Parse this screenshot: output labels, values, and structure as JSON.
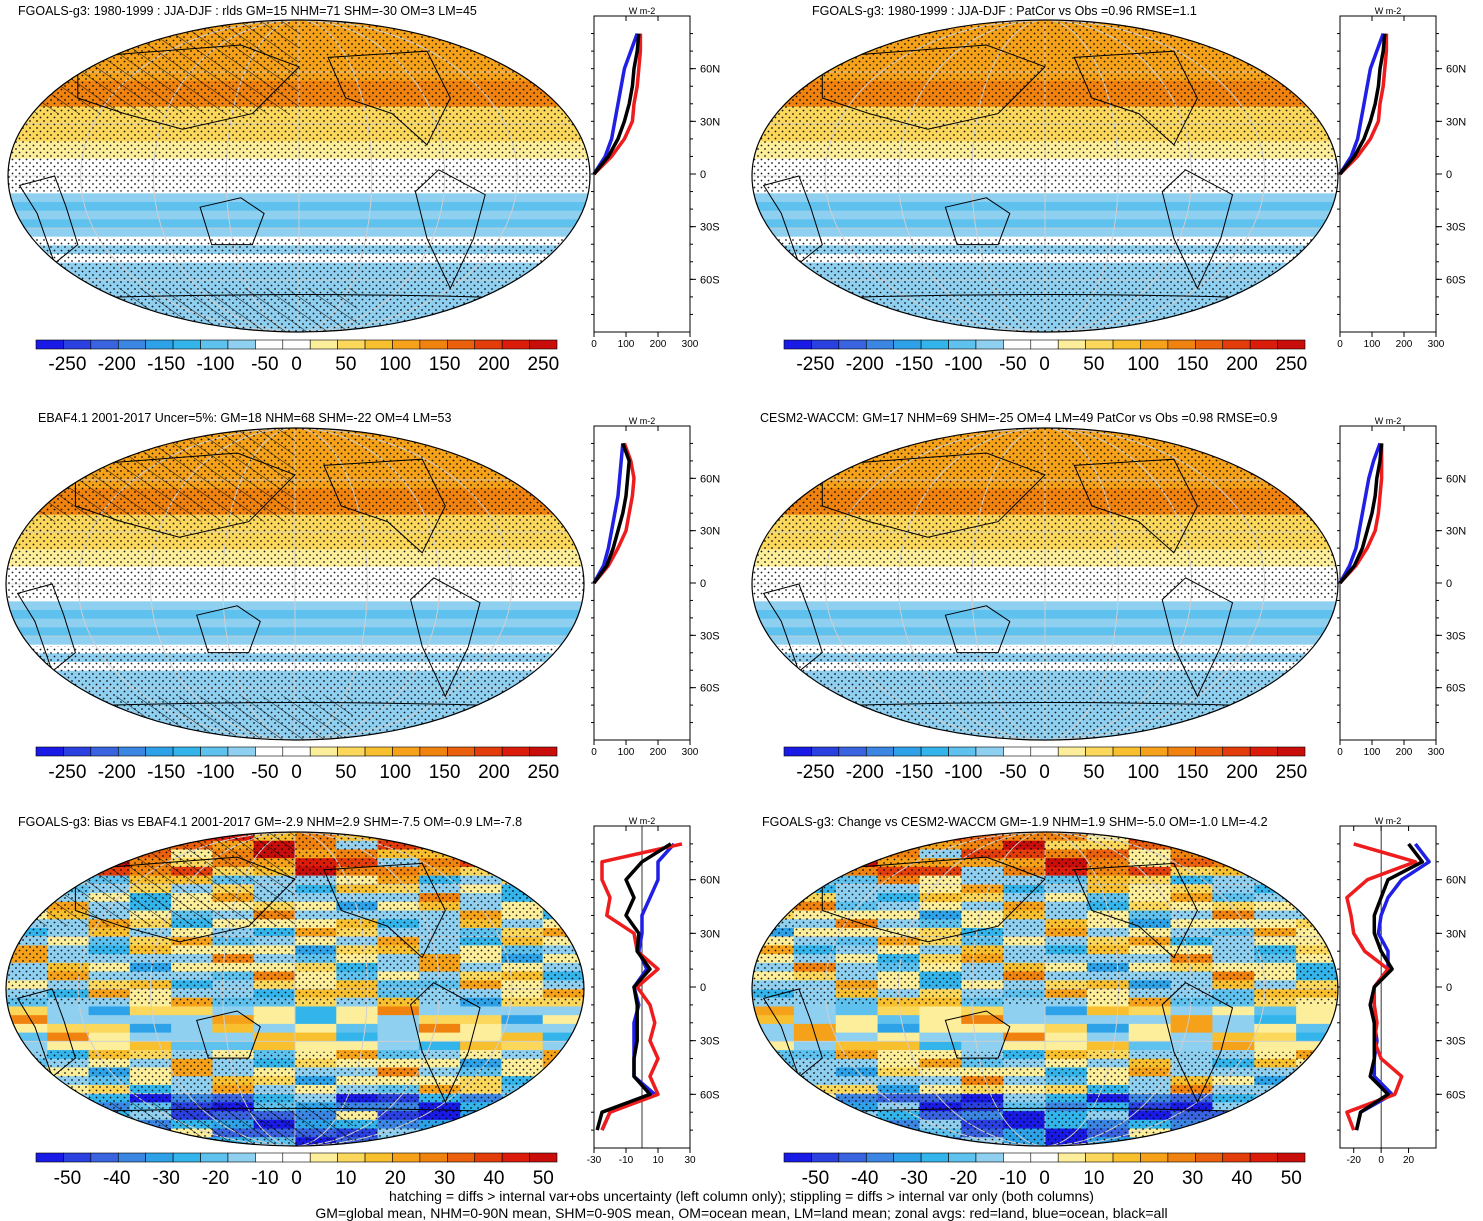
{
  "footer": {
    "line1": "hatching = diffs > internal var+obs uncertainty (left column only); stippling = diffs > internal var only (both columns)",
    "line2": "GM=global mean, NHM=0-90N mean, SHM=0-90S mean, OM=ocean mean, LM=land mean; zonal avgs: red=land, blue=ocean, black=all"
  },
  "palette": [
    "#1a1ae6",
    "#2a40e0",
    "#3a63e0",
    "#3c86e3",
    "#2ea2e8",
    "#33b5ec",
    "#5ec1ee",
    "#8fd0f1",
    "#ffffff",
    "#ffffff",
    "#fcee9a",
    "#fbd85c",
    "#f8bf2e",
    "#f5a21a",
    "#f0830f",
    "#eb600c",
    "#e43d0c",
    "#dc1c0b",
    "#c80d0b"
  ],
  "chart_data": [
    {
      "type": "heatmap",
      "title": "FGOALS-g3: 1980-1999 : JJA-DJF : rlds GM=15 NHM=71 SHM=-30 OM=3 LM=45",
      "field": "seasonal",
      "hatching": true,
      "colorbar_labels": [
        "-250",
        "-200",
        "-150",
        "-100",
        "-50",
        "0",
        "50",
        "100",
        "150",
        "200",
        "250"
      ],
      "zonal_avg": {
        "unit": "W m-2",
        "xticks": [
          "0",
          "100",
          "200",
          "300"
        ],
        "xlim": [
          0,
          300
        ],
        "yticks": [
          "60N",
          "30N",
          "0",
          "30S",
          "60S"
        ],
        "lat": [
          0,
          10,
          20,
          30,
          40,
          50,
          60,
          70,
          80
        ],
        "all": [
          0,
          45,
          75,
          95,
          110,
          120,
          125,
          135,
          140
        ],
        "land": [
          0,
          55,
          95,
          120,
          125,
          135,
          140,
          145,
          145
        ],
        "ocean": [
          0,
          35,
          55,
          65,
          75,
          85,
          95,
          115,
          135
        ]
      }
    },
    {
      "type": "heatmap",
      "title": "FGOALS-g3: 1980-1999 : JJA-DJF : PatCor vs Obs =0.96 RMSE=1.1",
      "field": "seasonal",
      "hatching": false,
      "colorbar_labels": [
        "-250",
        "-200",
        "-150",
        "-100",
        "-50",
        "0",
        "50",
        "100",
        "150",
        "200",
        "250"
      ],
      "zonal_avg": {
        "unit": "W m-2",
        "xticks": [
          "0",
          "100",
          "200",
          "300"
        ],
        "xlim": [
          0,
          300
        ],
        "yticks": [
          "60N",
          "30N",
          "0",
          "30S",
          "60S"
        ],
        "lat": [
          0,
          10,
          20,
          30,
          40,
          50,
          60,
          70,
          80
        ],
        "all": [
          0,
          45,
          75,
          95,
          110,
          120,
          125,
          135,
          140
        ],
        "land": [
          0,
          55,
          95,
          120,
          125,
          135,
          140,
          145,
          145
        ],
        "ocean": [
          0,
          35,
          55,
          65,
          75,
          85,
          95,
          115,
          135
        ]
      }
    },
    {
      "type": "heatmap",
      "title": "EBAF4.1 2001-2017 Uncer=5%: GM=18 NHM=68 SHM=-22 OM=4 LM=53",
      "field": "seasonal",
      "hatching": true,
      "colorbar_labels": [
        "-250",
        "-200",
        "-150",
        "-100",
        "-50",
        "0",
        "50",
        "100",
        "150",
        "200",
        "250"
      ],
      "zonal_avg": {
        "unit": "W m-2",
        "xticks": [
          "0",
          "100",
          "200",
          "300"
        ],
        "xlim": [
          0,
          300
        ],
        "yticks": [
          "60N",
          "30N",
          "0",
          "30S",
          "60S"
        ],
        "lat": [
          0,
          10,
          20,
          30,
          40,
          50,
          60,
          70,
          80
        ],
        "all": [
          0,
          40,
          60,
          75,
          90,
          100,
          105,
          110,
          90
        ],
        "land": [
          0,
          45,
          75,
          100,
          110,
          120,
          125,
          115,
          95
        ],
        "ocean": [
          0,
          30,
          45,
          55,
          65,
          75,
          80,
          85,
          90
        ]
      }
    },
    {
      "type": "heatmap",
      "title": "CESM2-WACCM: GM=17 NHM=69 SHM=-25 OM=4 LM=49 PatCor vs Obs =0.98 RMSE=0.9",
      "field": "seasonal",
      "hatching": false,
      "colorbar_labels": [
        "-250",
        "-200",
        "-150",
        "-100",
        "-50",
        "0",
        "50",
        "100",
        "150",
        "200",
        "250"
      ],
      "zonal_avg": {
        "unit": "W m-2",
        "xticks": [
          "0",
          "100",
          "200",
          "300"
        ],
        "xlim": [
          0,
          300
        ],
        "yticks": [
          "60N",
          "30N",
          "0",
          "30S",
          "60S"
        ],
        "lat": [
          0,
          10,
          20,
          30,
          40,
          50,
          60,
          70,
          80
        ],
        "all": [
          0,
          45,
          70,
          85,
          100,
          110,
          115,
          125,
          130
        ],
        "land": [
          0,
          50,
          85,
          110,
          120,
          125,
          130,
          130,
          130
        ],
        "ocean": [
          0,
          30,
          50,
          60,
          70,
          80,
          90,
          105,
          125
        ]
      }
    },
    {
      "type": "heatmap",
      "title": "FGOALS-g3: Bias vs EBAF4.1 2001-2017 GM=-2.9 NHM=2.9 SHM=-7.5 OM=-0.9 LM=-7.8",
      "field": "bias",
      "hatching": true,
      "colorbar_labels": [
        "-50",
        "-40",
        "-30",
        "-20",
        "-10",
        "0",
        "10",
        "20",
        "30",
        "40",
        "50"
      ],
      "zonal_avg": {
        "unit": "W m-2",
        "xticks": [
          "-30",
          "-10",
          "10",
          "30"
        ],
        "xlim": [
          -30,
          30
        ],
        "yticks": [
          "60N",
          "30N",
          "0",
          "30S",
          "60S"
        ],
        "lat": [
          80,
          70,
          60,
          50,
          40,
          30,
          20,
          10,
          0,
          -10,
          -20,
          -30,
          -40,
          -50,
          -60,
          -70,
          -80
        ],
        "all": [
          18,
          0,
          -10,
          -5,
          -10,
          -2,
          -3,
          5,
          -5,
          -3,
          -3,
          -3,
          -5,
          -5,
          5,
          -25,
          -28
        ],
        "land": [
          25,
          -25,
          -25,
          -20,
          -22,
          -5,
          -3,
          10,
          -3,
          5,
          8,
          5,
          10,
          5,
          10,
          -20,
          -25
        ],
        "ocean": [
          20,
          10,
          10,
          5,
          0,
          0,
          -2,
          3,
          -5,
          -2,
          -5,
          -5,
          -5,
          -5,
          8,
          -20,
          -25
        ]
      }
    },
    {
      "type": "heatmap",
      "title": "FGOALS-g3: Change vs CESM2-WACCM GM=-1.9 NHM=1.9 SHM=-5.0 OM=-1.0 LM=-4.2",
      "field": "bias",
      "hatching": false,
      "colorbar_labels": [
        "-50",
        "-40",
        "-30",
        "-20",
        "-10",
        "0",
        "10",
        "20",
        "30",
        "40",
        "50"
      ],
      "zonal_avg": {
        "unit": "W m-2",
        "xticks": [
          "-20",
          "0",
          "20"
        ],
        "xlim": [
          -30,
          40
        ],
        "yticks": [
          "60N",
          "30N",
          "0",
          "30S",
          "60S"
        ],
        "lat": [
          80,
          70,
          60,
          50,
          40,
          30,
          20,
          10,
          0,
          -10,
          -20,
          -30,
          -40,
          -50,
          -60,
          -70,
          -80
        ],
        "all": [
          20,
          30,
          5,
          0,
          -5,
          -5,
          0,
          8,
          -5,
          -8,
          -5,
          -5,
          -5,
          -8,
          5,
          -15,
          -18
        ],
        "land": [
          -20,
          25,
          -10,
          -25,
          -22,
          -20,
          -12,
          5,
          -5,
          -5,
          -3,
          -5,
          0,
          15,
          10,
          -25,
          -20
        ],
        "ocean": [
          25,
          35,
          15,
          5,
          0,
          -2,
          5,
          5,
          -5,
          -8,
          -5,
          -3,
          -5,
          -5,
          8,
          -15,
          -18
        ]
      }
    }
  ]
}
